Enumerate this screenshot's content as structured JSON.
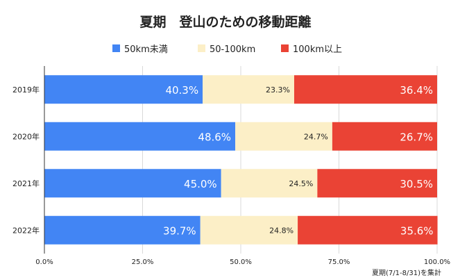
{
  "chart_data": {
    "type": "bar",
    "stacked": true,
    "orientation": "horizontal",
    "title": "夏期　登山のための移動距離",
    "categories": [
      "2019年",
      "2020年",
      "2021年",
      "2022年"
    ],
    "series": [
      {
        "name": "50km未満",
        "color": "#4285F4",
        "label_color": "#ffffff",
        "values": [
          40.3,
          48.6,
          45.0,
          39.7
        ],
        "labels": [
          "40.3%",
          "48.6%",
          "45.0%",
          "39.7%"
        ]
      },
      {
        "name": "50-100km",
        "color": "#FCEFC7",
        "label_color": "#222222",
        "values": [
          23.3,
          24.7,
          24.5,
          24.8
        ],
        "labels": [
          "23.3%",
          "24.7%",
          "24.5%",
          "24.8%"
        ]
      },
      {
        "name": "100km以上",
        "color": "#EA4335",
        "label_color": "#ffffff",
        "values": [
          36.4,
          26.7,
          30.5,
          35.6
        ],
        "labels": [
          "36.4%",
          "26.7%",
          "30.5%",
          "35.6%"
        ]
      }
    ],
    "x_ticks": [
      0,
      25,
      50,
      75,
      100
    ],
    "x_tick_labels": [
      "0.0%",
      "25.0%",
      "50.0%",
      "75.0%",
      "100.0%"
    ],
    "xlim": [
      0,
      100
    ],
    "legend_position": "top-center",
    "grid": true,
    "footnote": "夏期(7/1-8/31)を集計"
  }
}
